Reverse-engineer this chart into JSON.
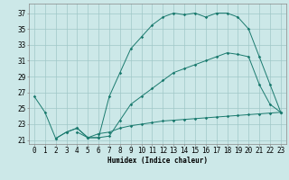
{
  "line1_x": [
    0,
    1,
    2,
    3,
    4,
    5,
    6,
    7,
    8,
    9,
    10,
    11,
    12,
    13,
    14,
    15,
    16,
    17,
    18,
    19,
    20,
    21,
    22,
    23
  ],
  "line1_y": [
    26.5,
    24.5,
    21.2,
    22.0,
    22.5,
    21.3,
    21.3,
    26.5,
    29.5,
    32.5,
    34.0,
    35.5,
    36.5,
    37.0,
    36.8,
    37.0,
    36.5,
    37.0,
    37.0,
    36.5,
    35.0,
    31.5,
    28.0,
    24.5
  ],
  "line2_x": [
    2,
    3,
    4,
    5,
    6,
    7,
    8,
    9,
    10,
    11,
    12,
    13,
    14,
    15,
    16,
    17,
    18,
    19,
    20,
    21,
    22,
    23
  ],
  "line2_y": [
    21.2,
    22.0,
    22.5,
    21.3,
    21.3,
    21.5,
    23.5,
    25.5,
    26.5,
    27.5,
    28.5,
    29.5,
    30.0,
    30.5,
    31.0,
    31.5,
    32.0,
    31.8,
    31.5,
    28.0,
    25.5,
    24.5
  ],
  "line3_x": [
    4,
    5,
    6,
    7,
    8,
    9,
    10,
    11,
    12,
    13,
    14,
    15,
    16,
    17,
    18,
    19,
    20,
    21,
    22,
    23
  ],
  "line3_y": [
    22.0,
    21.3,
    21.8,
    22.0,
    22.5,
    22.8,
    23.0,
    23.2,
    23.4,
    23.5,
    23.6,
    23.7,
    23.8,
    23.9,
    24.0,
    24.1,
    24.2,
    24.3,
    24.4,
    24.5
  ],
  "line_color": "#1a7a6e",
  "bg_color": "#cce8e8",
  "grid_color": "#a0c8c8",
  "xlabel": "Humidex (Indice chaleur)",
  "ylabel_ticks": [
    21,
    23,
    25,
    27,
    29,
    31,
    33,
    35,
    37
  ],
  "xlim": [
    -0.5,
    23.5
  ],
  "ylim": [
    20.5,
    38.2
  ],
  "xlabel_fontsize": 5.5,
  "tick_fontsize": 5.5
}
